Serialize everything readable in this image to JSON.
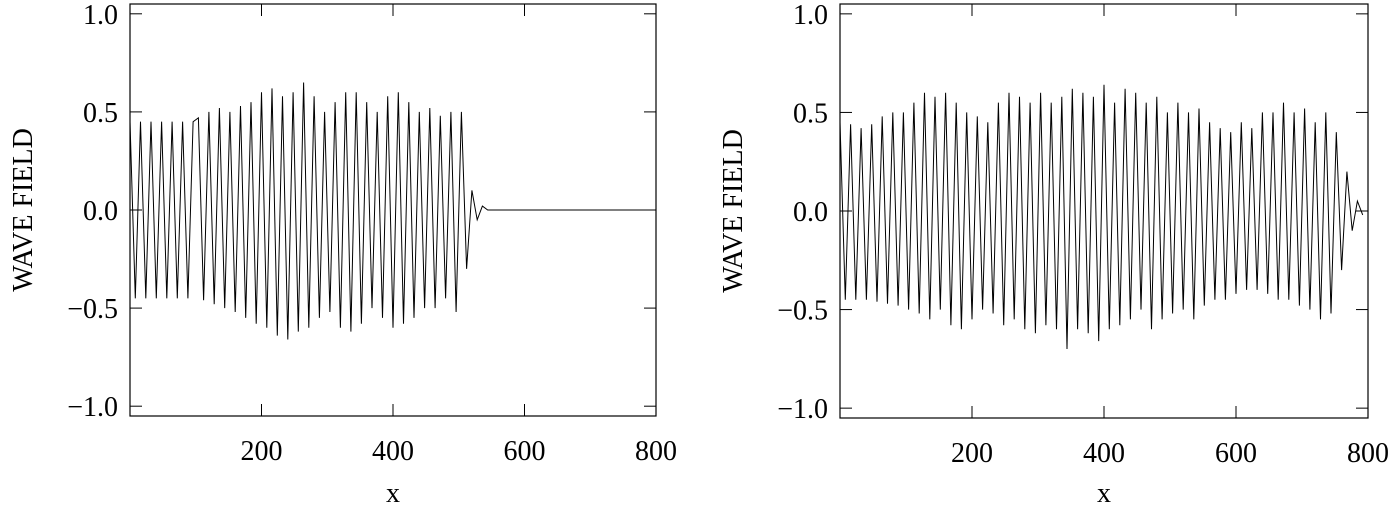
{
  "chart_data": [
    {
      "type": "line",
      "x_label": "x",
      "y_label": "WAVE FIELD",
      "color": "#000000",
      "xlim": [
        0,
        800
      ],
      "xticks": [
        200,
        400,
        600,
        800
      ],
      "ylim": [
        -1.05,
        1.05
      ],
      "yticks": [
        {
          "value": -1.0,
          "label": "−1.0"
        },
        {
          "value": -0.5,
          "label": "−0.5"
        },
        {
          "value": 0,
          "label": "0.0"
        },
        {
          "value": 0.5,
          "label": "0.5"
        },
        {
          "value": 1.0,
          "label": "1.0"
        }
      ],
      "x": [
        0,
        8,
        16,
        24,
        32,
        40,
        48,
        56,
        64,
        72,
        80,
        88,
        96,
        104,
        112,
        120,
        128,
        136,
        144,
        152,
        160,
        168,
        176,
        184,
        192,
        200,
        208,
        216,
        224,
        232,
        240,
        248,
        256,
        264,
        272,
        280,
        288,
        296,
        304,
        312,
        320,
        328,
        336,
        344,
        352,
        360,
        368,
        376,
        384,
        392,
        400,
        408,
        416,
        424,
        432,
        440,
        448,
        456,
        464,
        472,
        480,
        488,
        496,
        504,
        512,
        520,
        528,
        536,
        544,
        552,
        560,
        568,
        576,
        584,
        592,
        600,
        608,
        616,
        624,
        632,
        640,
        648,
        656,
        664,
        672,
        680,
        688,
        696,
        704,
        712,
        720,
        728,
        736,
        744,
        752,
        760,
        768,
        776,
        784,
        792
      ],
      "values": [
        0.45,
        -0.45,
        0.45,
        -0.45,
        0.45,
        -0.45,
        0.45,
        -0.45,
        0.45,
        -0.45,
        0.45,
        -0.45,
        0.45,
        0.47,
        -0.46,
        0.5,
        -0.48,
        0.52,
        -0.5,
        0.5,
        -0.52,
        0.53,
        -0.55,
        0.55,
        -0.58,
        0.6,
        -0.6,
        0.62,
        -0.64,
        0.58,
        -0.66,
        0.6,
        -0.62,
        0.65,
        -0.6,
        0.58,
        -0.55,
        0.5,
        -0.52,
        0.55,
        -0.6,
        0.6,
        -0.62,
        0.6,
        -0.58,
        0.55,
        -0.5,
        0.5,
        -0.55,
        0.58,
        -0.6,
        0.6,
        -0.58,
        0.55,
        -0.55,
        0.5,
        -0.5,
        0.52,
        -0.5,
        0.48,
        -0.45,
        0.5,
        -0.52,
        0.5,
        -0.3,
        0.1,
        -0.05,
        0.02,
        0,
        0,
        0,
        0,
        0,
        0,
        0,
        0,
        0,
        0,
        0,
        0,
        0,
        0,
        0,
        0,
        0,
        0,
        0,
        0,
        0,
        0,
        0,
        0,
        0,
        0,
        0,
        0,
        0,
        0,
        0,
        0
      ]
    },
    {
      "type": "line",
      "x_label": "x",
      "y_label": "WAVE FIELD",
      "color": "#000000",
      "xlim": [
        0,
        800
      ],
      "xticks": [
        200,
        400,
        600,
        800
      ],
      "ylim": [
        -1.05,
        1.05
      ],
      "yticks": [
        {
          "value": -1.0,
          "label": "−1.0"
        },
        {
          "value": -0.5,
          "label": "−0.5"
        },
        {
          "value": 0,
          "label": "0.0"
        },
        {
          "value": 0.5,
          "label": "0.5"
        },
        {
          "value": 1.0,
          "label": "1.0"
        }
      ],
      "x": [
        0,
        8,
        16,
        24,
        32,
        40,
        48,
        56,
        64,
        72,
        80,
        88,
        96,
        104,
        112,
        120,
        128,
        136,
        144,
        152,
        160,
        168,
        176,
        184,
        192,
        200,
        208,
        216,
        224,
        232,
        240,
        248,
        256,
        264,
        272,
        280,
        288,
        296,
        304,
        312,
        320,
        328,
        336,
        344,
        352,
        360,
        368,
        376,
        384,
        392,
        400,
        408,
        416,
        424,
        432,
        440,
        448,
        456,
        464,
        472,
        480,
        488,
        496,
        504,
        512,
        520,
        528,
        536,
        544,
        552,
        560,
        568,
        576,
        584,
        592,
        600,
        608,
        616,
        624,
        632,
        640,
        648,
        656,
        664,
        672,
        680,
        688,
        696,
        704,
        712,
        720,
        728,
        736,
        744,
        752,
        760,
        768,
        776,
        784,
        792
      ],
      "values": [
        0.45,
        -0.45,
        0.44,
        -0.45,
        0.42,
        -0.45,
        0.44,
        -0.46,
        0.48,
        -0.47,
        0.5,
        -0.48,
        0.5,
        -0.5,
        0.55,
        -0.52,
        0.6,
        -0.55,
        0.58,
        -0.5,
        0.6,
        -0.58,
        0.55,
        -0.6,
        0.5,
        -0.55,
        0.48,
        -0.5,
        0.45,
        -0.52,
        0.55,
        -0.58,
        0.6,
        -0.55,
        0.58,
        -0.6,
        0.55,
        -0.62,
        0.6,
        -0.58,
        0.55,
        -0.6,
        0.58,
        -0.7,
        0.62,
        -0.6,
        0.6,
        -0.62,
        0.58,
        -0.66,
        0.64,
        -0.6,
        0.55,
        -0.58,
        0.62,
        -0.55,
        0.6,
        -0.5,
        0.55,
        -0.6,
        0.58,
        -0.55,
        0.5,
        -0.52,
        0.55,
        -0.5,
        0.5,
        -0.55,
        0.52,
        -0.48,
        0.45,
        -0.45,
        0.42,
        -0.45,
        0.4,
        -0.42,
        0.45,
        -0.4,
        0.42,
        -0.4,
        0.5,
        -0.42,
        0.5,
        -0.45,
        0.55,
        -0.45,
        0.5,
        -0.48,
        0.52,
        -0.5,
        0.45,
        -0.55,
        0.5,
        -0.52,
        0.4,
        -0.3,
        0.2,
        -0.1,
        0.05,
        -0.02
      ]
    }
  ]
}
